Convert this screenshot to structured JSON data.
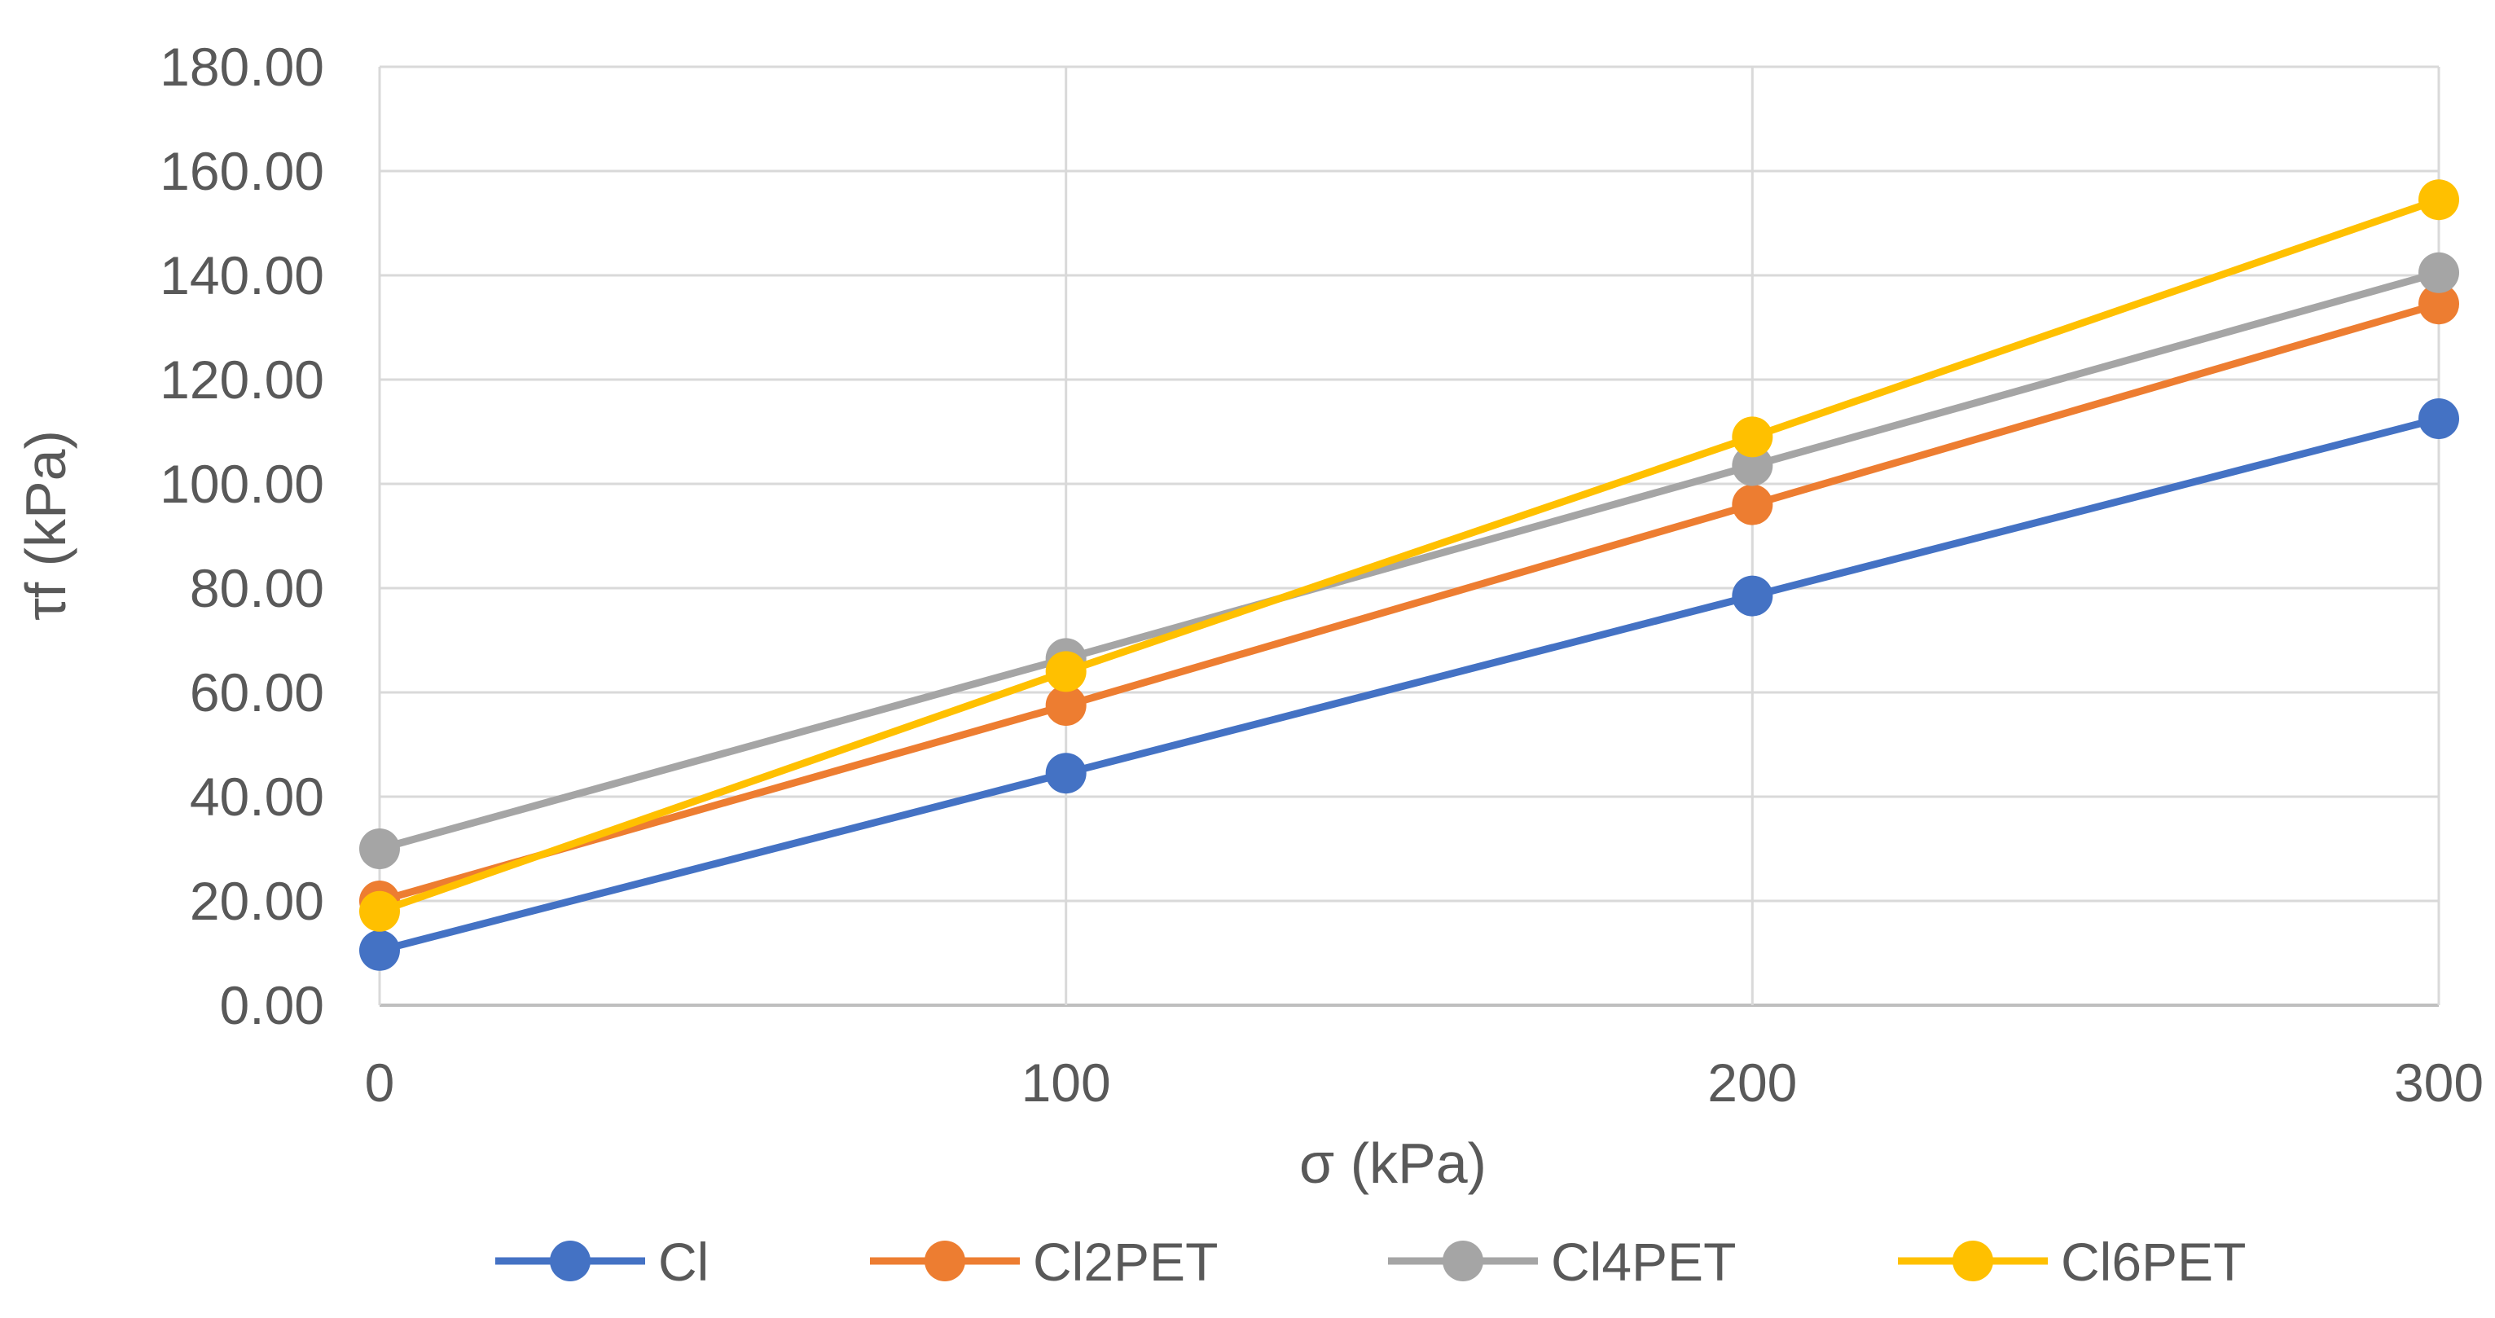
{
  "chart_data": {
    "type": "line",
    "title": "",
    "xlabel": "σ (kPa)",
    "ylabel": "τf (kPa)",
    "x": [
      0,
      100,
      200,
      300
    ],
    "x_tick_labels": [
      "0",
      "100",
      "200",
      "300"
    ],
    "ylim": [
      0,
      180
    ],
    "y_tick_values": [
      0,
      20,
      40,
      60,
      80,
      100,
      120,
      140,
      160,
      180
    ],
    "y_tick_labels": [
      "0.00",
      "20.00",
      "40.00",
      "60.00",
      "80.00",
      "100.00",
      "120.00",
      "140.00",
      "160.00",
      "180.00"
    ],
    "grid": true,
    "legend_position": "bottom",
    "series": [
      {
        "name": "Cl",
        "color": "#4472C4",
        "values": [
          10.5,
          44.5,
          78.5,
          112.5
        ]
      },
      {
        "name": "Cl2PET",
        "color": "#ED7D31",
        "values": [
          20.0,
          57.5,
          96.0,
          134.5
        ]
      },
      {
        "name": "Cl4PET",
        "color": "#A5A5A5",
        "values": [
          30.0,
          66.5,
          103.5,
          140.5
        ]
      },
      {
        "name": "Cl6PET",
        "color": "#FFC000",
        "values": [
          18.0,
          64.0,
          109.0,
          154.5
        ]
      }
    ]
  }
}
